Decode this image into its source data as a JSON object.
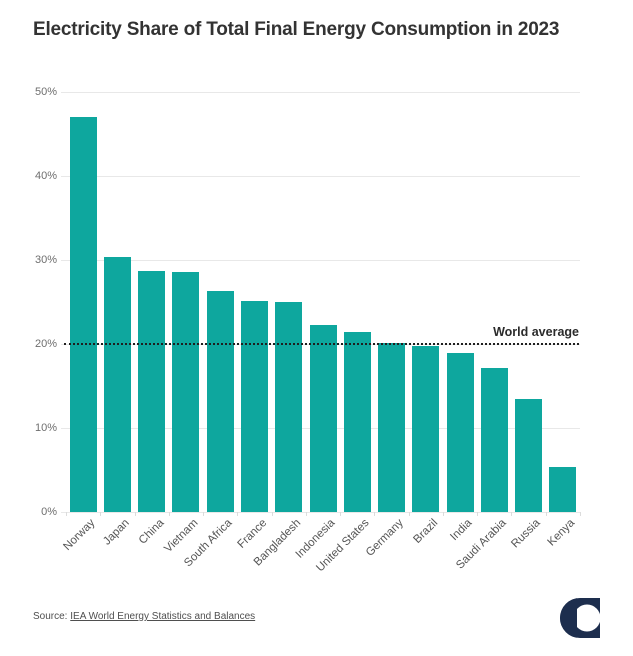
{
  "title": "Electricity Share of Total Final Energy Consumption in 2023",
  "source": {
    "prefix": "Source: ",
    "link_text": "IEA World Energy Statistics and Balances"
  },
  "logo": {
    "name": "publisher-logo",
    "color": "#1d2e4e"
  },
  "chart_data": {
    "type": "bar",
    "title": "Electricity Share of Total Final Energy Consumption in 2023",
    "categories": [
      "Norway",
      "Japan",
      "China",
      "Vietnam",
      "South Africa",
      "France",
      "Bangladesh",
      "Indonesia",
      "United States",
      "Germany",
      "Brazil",
      "India",
      "Saudi Arabia",
      "Russia",
      "Kenya"
    ],
    "values": [
      47.0,
      30.3,
      28.7,
      28.6,
      26.3,
      25.1,
      25.0,
      22.3,
      21.4,
      20.1,
      19.8,
      18.9,
      17.1,
      13.4,
      5.4
    ],
    "unit": "%",
    "xlabel": "",
    "ylabel": "",
    "ylim": [
      0,
      50
    ],
    "ytick_step": 10,
    "ytick_labels": [
      "0%",
      "10%",
      "20%",
      "30%",
      "40%",
      "50%"
    ],
    "grid": "horizontal",
    "bar_color": "#0EA79E",
    "reference_line": {
      "value": 20,
      "label": "World average"
    }
  }
}
